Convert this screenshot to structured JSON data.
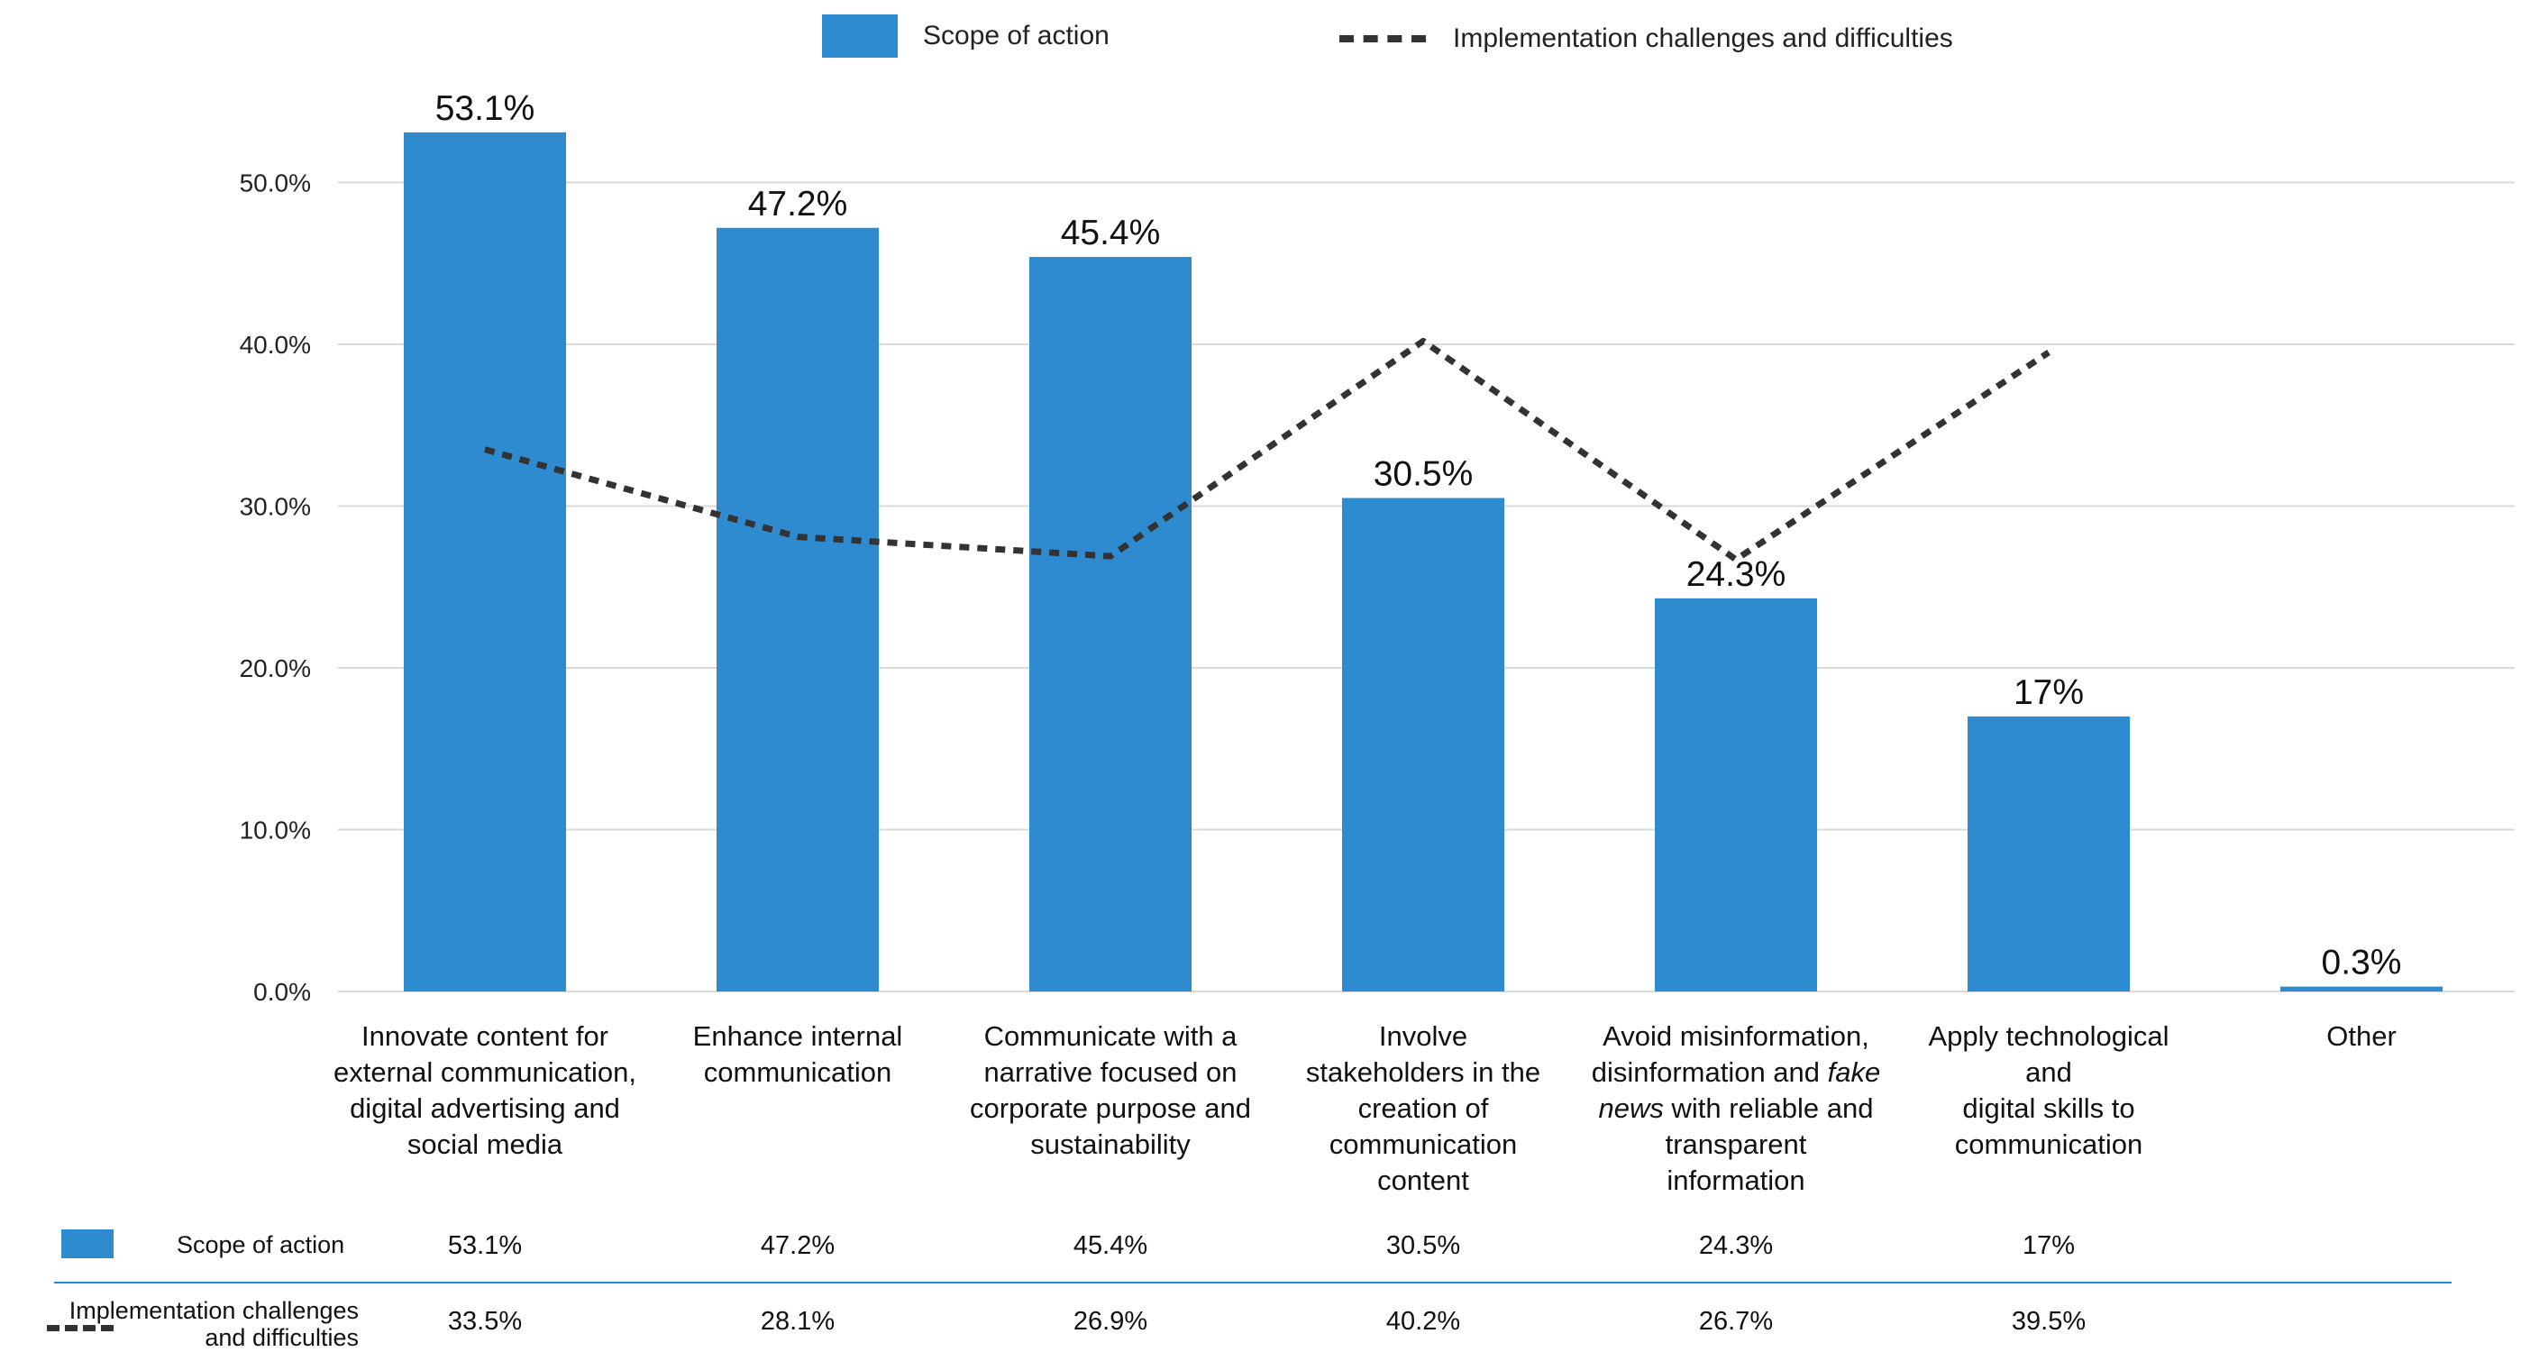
{
  "colors": {
    "bar": "#2e8bd0",
    "line": "#333333",
    "grid": "#d9d9d9",
    "separator": "#2e8bd0"
  },
  "legend": {
    "bar_label": "Scope of action",
    "line_label": "Implementation challenges and difficulties"
  },
  "chart_data": {
    "type": "bar",
    "categories": [
      "Innovate content for external communication, digital advertising and social media",
      "Enhance internal communication",
      "Communicate with a narrative focused on corporate purpose and sustainability",
      "Involve stakeholders in the creation of communication content",
      "Avoid misinformation, disinformation and fake news with reliable and transparent information",
      "Apply technological and digital skills to communication",
      "Other"
    ],
    "category_lines": [
      [
        "Innovate content for",
        "external communication,",
        "digital advertising and",
        "social media"
      ],
      [
        "Enhance internal",
        "communication"
      ],
      [
        "Communicate with a",
        "narrative focused on",
        "corporate purpose and",
        "sustainability"
      ],
      [
        "Involve",
        "stakeholders in the",
        "creation of",
        "communication",
        "content"
      ],
      [
        "Avoid misinformation,",
        "disinformation and fake",
        "news with reliable and",
        "transparent",
        "information"
      ],
      [
        "Apply technological",
        "and",
        "digital skills to",
        "communication"
      ],
      [
        "Other"
      ]
    ],
    "series": [
      {
        "name": "Scope of action",
        "type": "bar",
        "values": [
          53.1,
          47.2,
          45.4,
          30.5,
          24.3,
          17,
          0.3
        ],
        "data_labels": [
          "53.1%",
          "47.2%",
          "45.4%",
          "30.5%",
          "24.3%",
          "17%",
          "0.3%"
        ]
      },
      {
        "name": "Implementation challenges and difficulties",
        "type": "line",
        "style": "dashed",
        "values": [
          33.5,
          28.1,
          26.9,
          40.2,
          26.7,
          39.5,
          null
        ]
      }
    ],
    "yticks": [
      0,
      10,
      20,
      30,
      40,
      50
    ],
    "ytick_labels": [
      "0.0%",
      "10.0%",
      "20.0%",
      "30.0%",
      "40.0%",
      "50.0%"
    ],
    "ylim": [
      0,
      53.1
    ],
    "grid": true,
    "legend_position": "top"
  },
  "table": {
    "rows": [
      {
        "label_lines": [
          "Scope of action"
        ],
        "marker": "bar",
        "cells": [
          "53.1%",
          "47.2%",
          "45.4%",
          "30.5%",
          "24.3%",
          "17%",
          ""
        ]
      },
      {
        "label_lines": [
          "Implementation challenges",
          "and difficulties"
        ],
        "marker": "line",
        "cells": [
          "33.5%",
          "28.1%",
          "26.9%",
          "40.2%",
          "26.7%",
          "39.5%",
          ""
        ]
      }
    ]
  }
}
